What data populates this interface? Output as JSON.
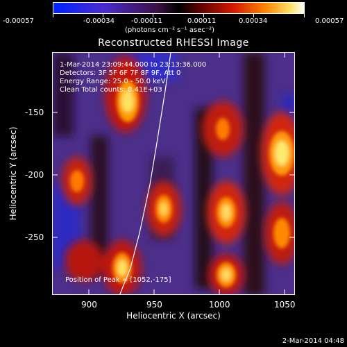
{
  "colorbar": {
    "tick_labels": [
      "-0.00057",
      "-0.00034",
      "-0.00011",
      "0.00011",
      "0.00034",
      "0.00057"
    ],
    "units": "(photons cm⁻² s⁻¹ asec⁻²)"
  },
  "title": "Reconstructed RHESSI Image",
  "annotations": {
    "time_range": "1-Mar-2014 23:09:44.000 to 23:13:36.000",
    "detectors": "Detectors: 3F 5F 6F 7F 8F 9F, Att 0",
    "energy": "Energy Range: 25.0 - 50.0 keV",
    "clean": "Clean     Total counts: 8.41E+03",
    "peak": "Position of Peak = [1052,-175]"
  },
  "x_axis": {
    "label": "Heliocentric X (arcsec)",
    "ticks": [
      "900",
      "950",
      "1000",
      "1050"
    ]
  },
  "y_axis": {
    "label": "Heliocentric Y (arcsec)",
    "ticks": [
      "-150",
      "-200",
      "-250"
    ]
  },
  "footer": "2-Mar-2014 04:48"
}
